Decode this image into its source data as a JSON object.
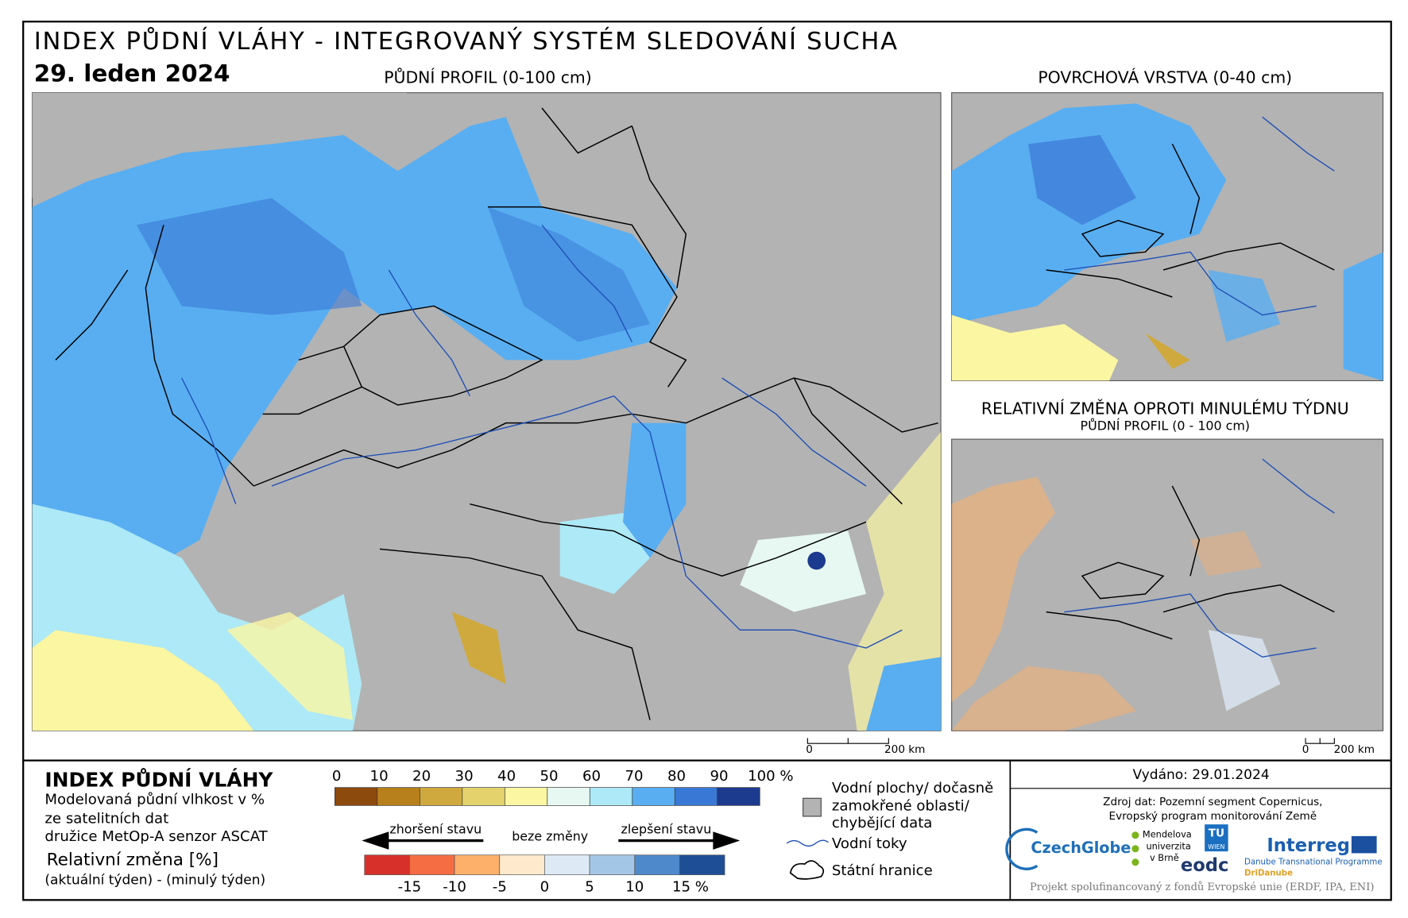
{
  "header": {
    "title": "INDEX PŮDNÍ VLÁHY - INTEGROVANÝ SYSTÉM SLEDOVÁNÍ SUCHA",
    "date": "29. leden 2024"
  },
  "maps": {
    "main": {
      "title": "PŮDNÍ PROFIL (0-100 cm)",
      "scale": [
        "0",
        "200 km"
      ]
    },
    "surface": {
      "title": "POVRCHOVÁ VRSTVA (0-40 cm)"
    },
    "change": {
      "title": "RELATIVNÍ ZMĚNA OPROTI MINULÉMU TÝDNU",
      "subtitle": "PŮDNÍ PROFIL (0 - 100 cm)",
      "scale": [
        "0",
        "200 km"
      ]
    }
  },
  "legend": {
    "title": "INDEX PŮDNÍ VLÁHY",
    "description": [
      "Modelovaná půdní vlhkost v %",
      "ze satelitních dat",
      "družice MetOp-A senzor ASCAT"
    ],
    "change_title": "Relativní změna [%]",
    "change_description": "(aktuální týden) - (minulý týden)",
    "moisture_ticks": [
      "0",
      "10",
      "20",
      "30",
      "40",
      "50",
      "60",
      "70",
      "80",
      "90",
      "100 %"
    ],
    "moisture_colors": [
      "#8c4a0c",
      "#b8801c",
      "#cfa93e",
      "#e4d36c",
      "#fbf6a2",
      "#e6f8f1",
      "#ade9f6",
      "#58aef1",
      "#3a78d6",
      "#1c3a8e"
    ],
    "change_ticks": [
      "-15",
      "-10",
      "-5",
      "0",
      "5",
      "10",
      "15 %"
    ],
    "change_colors": [
      "#d7302a",
      "#f46d43",
      "#fdb06a",
      "#fee9cc",
      "#dde9f5",
      "#a4c6e6",
      "#4d89cb",
      "#1e4f96"
    ],
    "worse": "zhoršení stavu",
    "nochange": "beze změny",
    "better": "zlepšení stavu",
    "water": [
      "Vodní plochy/ dočasně",
      "zamokřené oblasti/",
      "chybějící data"
    ],
    "rivers": "Vodní toky",
    "borders": "Státní hranice"
  },
  "info": {
    "issued": "Vydáno: 29.01.2024",
    "source": [
      "Zdroj dat: Pozemní segment Copernicus,",
      "Evropský program monitorování Země"
    ],
    "logos": {
      "czechglobe": "CzechGlobe",
      "mendel": [
        "Mendelova",
        "univerzita",
        "v Brně"
      ],
      "tu": "TU",
      "wien": "WIEN",
      "eodc": "eodc",
      "interreg": "Interreg",
      "programme": "Danube Transnational Programme",
      "dridanube": "DriDanube"
    },
    "footer": "Projekt spolufinancovaný z fondů Evropské unie (ERDF, IPA, ENI)"
  }
}
